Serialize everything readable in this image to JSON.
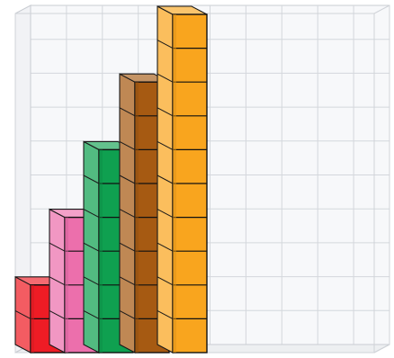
{
  "chart_data": {
    "type": "bar",
    "style": "3d-stacked-unit-cubes",
    "categories": [
      "",
      "",
      "",
      "",
      ""
    ],
    "values": [
      2,
      4,
      6,
      8,
      10
    ],
    "colors": [
      "#ee1c25",
      "#ec6fac",
      "#0fa050",
      "#a65a12",
      "#f9a51e"
    ],
    "grid": true,
    "ylim": [
      0,
      10
    ]
  }
}
